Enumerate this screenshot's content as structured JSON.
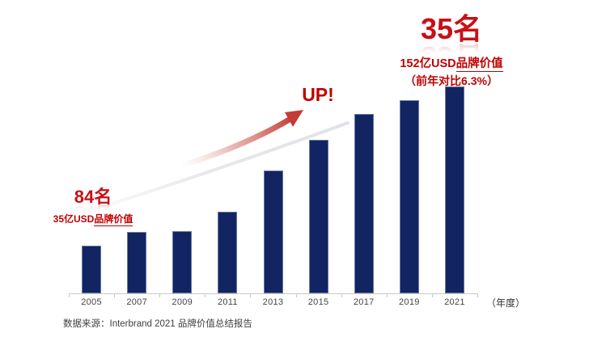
{
  "page": {
    "background": "#ffffff"
  },
  "colors": {
    "bar": "#122562",
    "accent_red": "#C00000",
    "big_red": "#C81016",
    "axis_gray": "#C9C9C9",
    "text_gray": "#404040",
    "arrow_red": "#C43C35",
    "arrow_tail_pink": "#EFC7C4",
    "shadow_swoosh_gray": "#E4E4E4"
  },
  "chart_data": {
    "type": "bar",
    "title": "",
    "categories": [
      "2005",
      "2007",
      "2009",
      "2011",
      "2013",
      "2015",
      "2017",
      "2019",
      "2021"
    ],
    "values": [
      35,
      45,
      46,
      60,
      90,
      113,
      132,
      142,
      152
    ],
    "value_unit": "亿USD",
    "xlabel": "（年度）",
    "ylabel": "",
    "ylim": [
      0,
      160
    ],
    "grid": false,
    "legend": false,
    "bar_color": "#122562"
  },
  "annotations": {
    "start_rank": "84名",
    "start_value_prefix": "35亿USD",
    "start_value_underlined": "品牌价值",
    "end_rank": "35名",
    "end_value_prefix": "152亿USD",
    "end_value_underlined": "品牌价值",
    "end_yoy": "（前年对比6.3%）",
    "up_label": "UP!"
  },
  "footer": {
    "source": "数据来源：Interbrand 2021 品牌价值总结报告"
  }
}
